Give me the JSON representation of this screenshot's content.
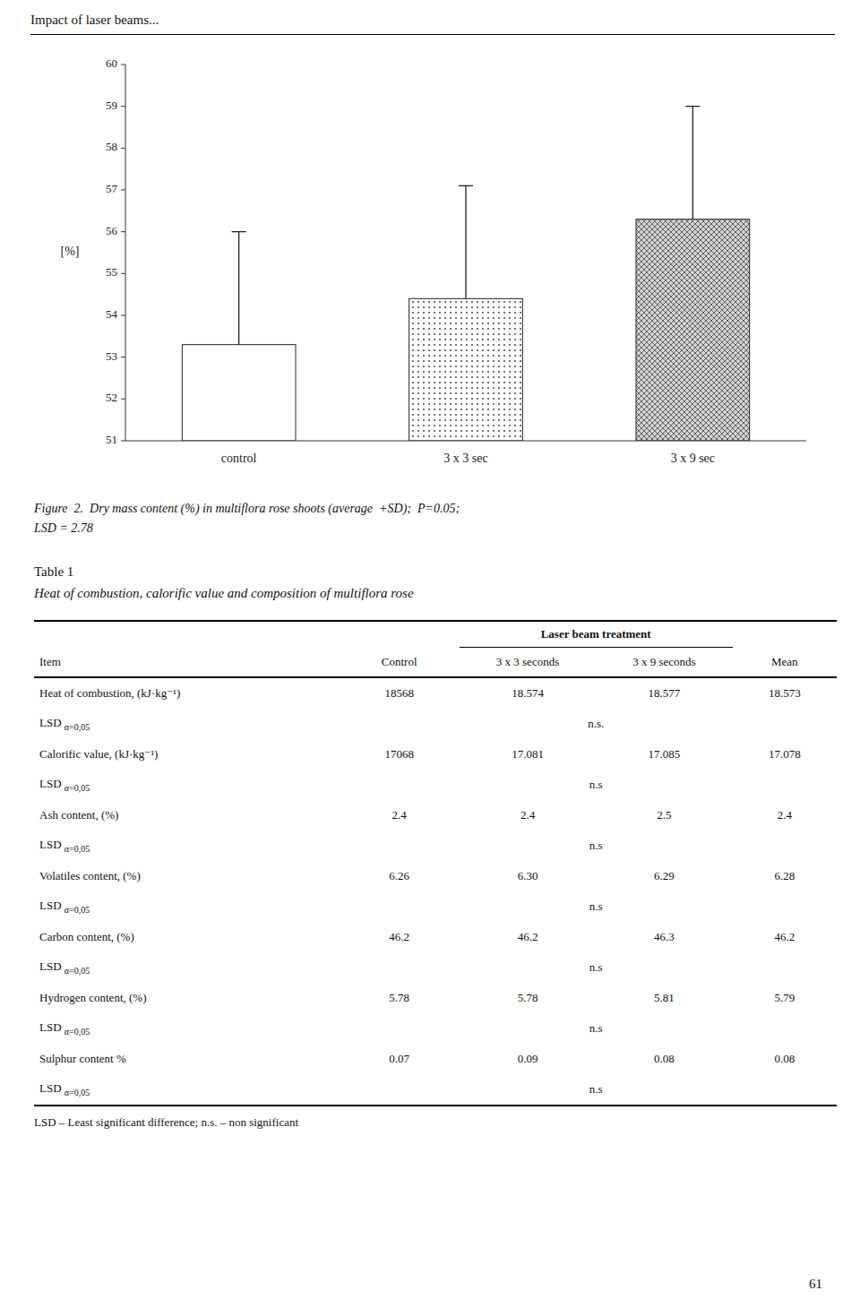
{
  "chart_data": {
    "type": "bar",
    "categories": [
      "control",
      "3 x 3 sec",
      "3 x 9 sec"
    ],
    "values": [
      53.3,
      54.4,
      56.3
    ],
    "errors": [
      2.7,
      2.7,
      2.7
    ],
    "colors": [
      "white",
      "white",
      "lightgray"
    ],
    "y_label": "[%]",
    "ylim": [
      51,
      60
    ],
    "yticks": [
      51,
      52,
      53,
      54,
      55,
      56,
      57,
      58,
      59,
      60
    ]
  },
  "page": {
    "header": "Impact of laser beams...",
    "number": "61",
    "caption": [
      "Figure  2.  Dry mass content (%) in multiflora rose shoots (average  +SD);  P=0.05;",
      "LSD = 2.78"
    ],
    "table": {
      "title": "Table 1",
      "subtitle": "Heat of combustion, calorific value and composition of multiflora rose",
      "subheader": "Laser beam treatment",
      "columns": [
        "Item",
        "Control",
        "3 x 3 seconds",
        "3 x 9 seconds",
        "Mean"
      ],
      "rows": [
        {
          "item": "Heat of combustion, (kJ·kg⁻¹)",
          "values": [
            "18568",
            "18.574",
            "18.577",
            "18.573"
          ]
        },
        {
          "label": "LSD α=0,05",
          "note": "n.s."
        },
        {
          "item": "Calorific value, (kJ·kg⁻¹)",
          "values": [
            "17068",
            "17.081",
            "17.085",
            "17.078"
          ]
        },
        {
          "label": "LSD α=0,05",
          "note": "n.s"
        },
        {
          "item": "Ash content, (%)",
          "values": [
            "2.4",
            "2.4",
            "2.5",
            "2.4"
          ]
        },
        {
          "label": "LSD α=0,05",
          "note": "n.s"
        },
        {
          "item": "Volatiles content, (%)",
          "values": [
            "6.26",
            "6.30",
            "6.29",
            "6.28"
          ]
        },
        {
          "label": "LSD α=0,05",
          "note": "n.s"
        },
        {
          "item": "Carbon content, (%)",
          "values": [
            "46.2",
            "46.2",
            "46.3",
            "46.2"
          ]
        },
        {
          "label": "LSD α=0,05",
          "note": "n.s"
        },
        {
          "item": "Hydrogen content, (%)",
          "values": [
            "5.78",
            "5.78",
            "5.81",
            "5.79"
          ]
        },
        {
          "label": "LSD α=0,05",
          "note": "n.s"
        },
        {
          "item": "Sulphur content %",
          "values": [
            "0.07",
            "0.09",
            "0.08",
            "0.08"
          ]
        },
        {
          "label": "LSD α=0,05",
          "note": "n.s"
        }
      ],
      "footer": "LSD – Least significant difference; n.s. – non significant"
    }
  }
}
